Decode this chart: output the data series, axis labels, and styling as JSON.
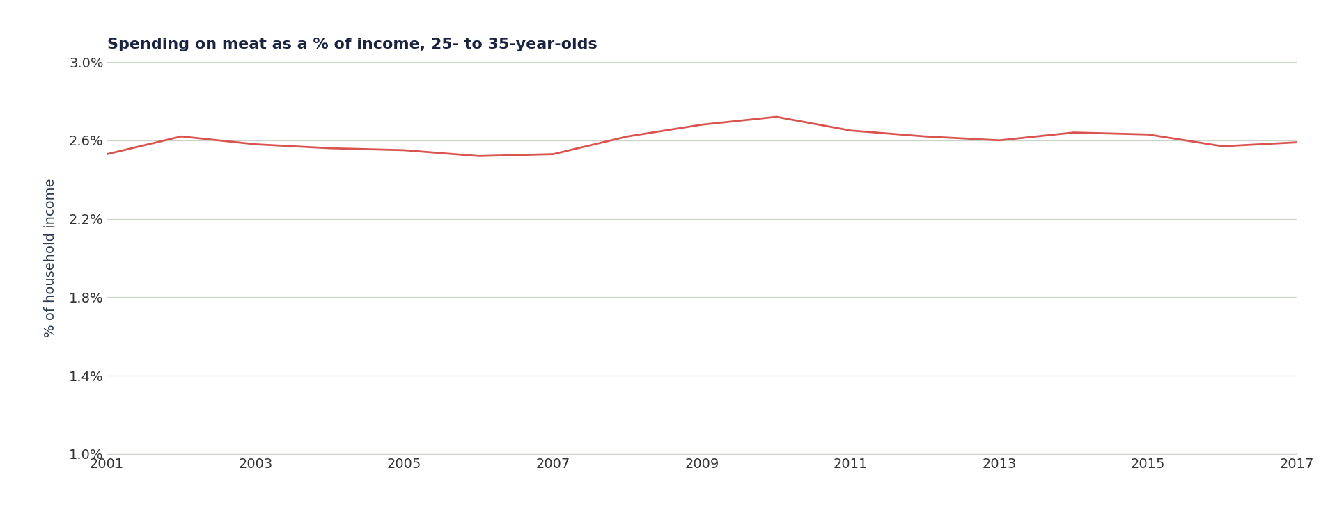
{
  "title": "Spending on meat as a % of income, 25- to 35-year-olds",
  "ylabel": "% of household income",
  "x_values": [
    2001,
    2002,
    2003,
    2004,
    2005,
    2006,
    2007,
    2008,
    2009,
    2010,
    2011,
    2012,
    2013,
    2014,
    2015,
    2016,
    2017
  ],
  "y_values": [
    0.0253,
    0.0262,
    0.0258,
    0.0256,
    0.0255,
    0.0252,
    0.0253,
    0.0262,
    0.0268,
    0.0272,
    0.0265,
    0.0262,
    0.026,
    0.0264,
    0.0263,
    0.0257,
    0.0259
  ],
  "line_color": "#d9534f",
  "line_width": 2.0,
  "background_color": "#ffffff",
  "grid_color": "#c8d4c8",
  "title_color": "#1a2340",
  "ylabel_color": "#2a3a50",
  "tick_label_color": "#333333",
  "ylim": [
    0.01,
    0.03
  ],
  "yticks": [
    0.01,
    0.014,
    0.018,
    0.022,
    0.026,
    0.03
  ],
  "xticks": [
    2001,
    2003,
    2005,
    2007,
    2009,
    2011,
    2013,
    2015,
    2017
  ],
  "title_fontsize": 16,
  "ylabel_fontsize": 14,
  "tick_fontsize": 14
}
